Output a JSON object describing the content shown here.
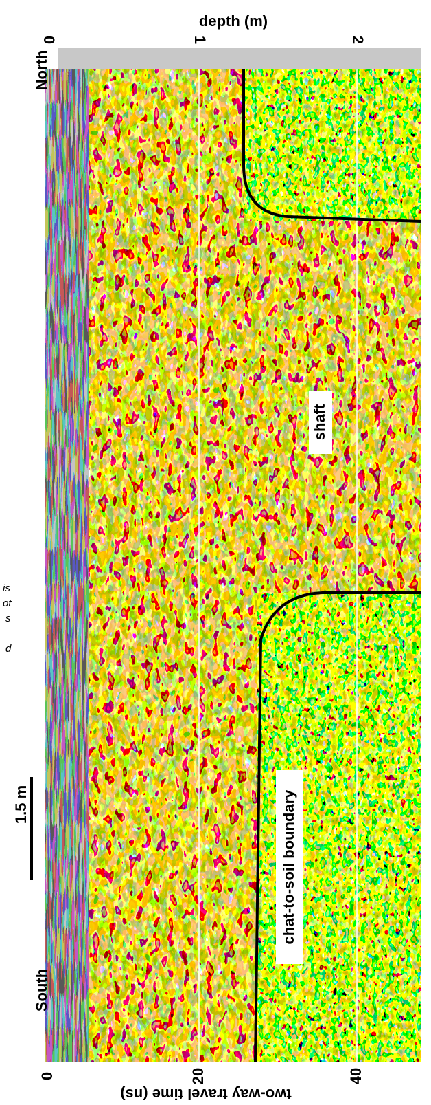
{
  "figure": {
    "top_axis": {
      "label": "depth (m)",
      "ticks": [
        "0",
        "1",
        "2"
      ]
    },
    "bottom_axis": {
      "label": "two-way travel time (ns)",
      "ticks": [
        "0",
        "20",
        "40"
      ]
    },
    "ends": {
      "north": "North",
      "south": "South"
    },
    "scale_bar": "1.5 m",
    "annotations": {
      "shaft": "shaft",
      "boundary": "chat-to-soil boundary"
    },
    "caption_fragments": [
      "is",
      "ot",
      "s",
      "d"
    ]
  }
}
